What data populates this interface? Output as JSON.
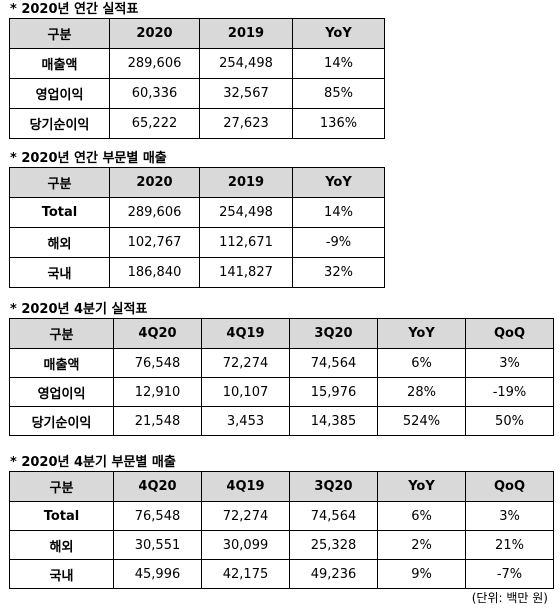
{
  "s1": {
    "title": "* 2020년 연간 실적표",
    "headers": [
      "구분",
      "2020",
      "2019",
      "YoY"
    ],
    "rows": [
      [
        "매출액",
        "289,606",
        "254,498",
        "14%"
      ],
      [
        "영업이익",
        "60,336",
        "32,567",
        "85%"
      ],
      [
        "당기순이익",
        "65,222",
        "27,623",
        "136%"
      ]
    ]
  },
  "s2": {
    "title": "* 2020년 연간 부문별 매출",
    "headers": [
      "구분",
      "2020",
      "2019",
      "YoY"
    ],
    "rows": [
      [
        "Total",
        "289,606",
        "254,498",
        "14%"
      ],
      [
        "해외",
        "102,767",
        "112,671",
        "-9%"
      ],
      [
        "국내",
        "186,840",
        "141,827",
        "32%"
      ]
    ]
  },
  "s3": {
    "title": "* 2020년 4분기 실적표",
    "headers": [
      "구분",
      "4Q20",
      "4Q19",
      "3Q20",
      "YoY",
      "QoQ"
    ],
    "rows": [
      [
        "매출액",
        "76,548",
        "72,274",
        "74,564",
        "6%",
        "3%"
      ],
      [
        "영업이익",
        "12,910",
        "10,107",
        "15,976",
        "28%",
        "-19%"
      ],
      [
        "당기순이익",
        "21,548",
        "3,453",
        "14,385",
        "524%",
        "50%"
      ]
    ]
  },
  "s4": {
    "title": "* 2020년 4분기 부문별 매출",
    "headers": [
      "구분",
      "4Q20",
      "4Q19",
      "3Q20",
      "YoY",
      "QoQ"
    ],
    "rows": [
      [
        "Total",
        "76,548",
        "72,274",
        "74,564",
        "6%",
        "3%"
      ],
      [
        "해외",
        "30,551",
        "30,099",
        "25,328",
        "2%",
        "21%"
      ],
      [
        "국내",
        "45,996",
        "42,175",
        "49,236",
        "9%",
        "-7%"
      ]
    ]
  },
  "unit_note": "(단위: 백만 원)"
}
